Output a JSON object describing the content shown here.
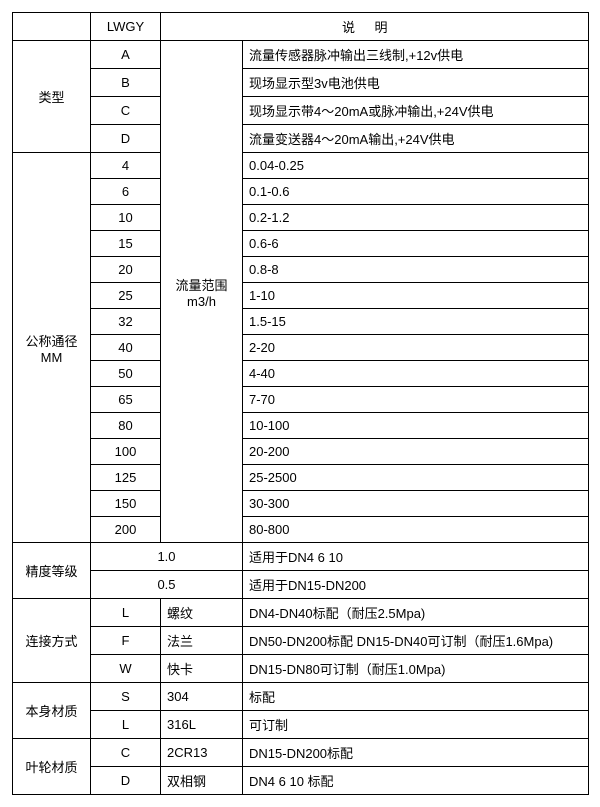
{
  "header": {
    "lwgy": "LWGY",
    "shuoming": "说明"
  },
  "type": {
    "label": "类型",
    "rows": [
      {
        "code": "A",
        "desc": "流量传感器脉冲输出三线制,+12v供电"
      },
      {
        "code": "B",
        "desc": "现场显示型3v电池供电"
      },
      {
        "code": "C",
        "desc": "现场显示带4～20mA或脉冲输出,+24V供电"
      },
      {
        "code": "D",
        "desc": "流量变送器4～20mA输出,+24V供电"
      }
    ]
  },
  "diameter": {
    "label_line1": "公称通径",
    "label_line2": "MM",
    "range_label_line1": "流量范围",
    "range_label_line2": "m3/h",
    "rows": [
      {
        "dn": "4",
        "range": "0.04-0.25"
      },
      {
        "dn": "6",
        "range": "0.1-0.6"
      },
      {
        "dn": "10",
        "range": "0.2-1.2"
      },
      {
        "dn": "15",
        "range": "0.6-6"
      },
      {
        "dn": "20",
        "range": "0.8-8"
      },
      {
        "dn": "25",
        "range": "1-10"
      },
      {
        "dn": "32",
        "range": "1.5-15"
      },
      {
        "dn": "40",
        "range": "2-20"
      },
      {
        "dn": "50",
        "range": "4-40"
      },
      {
        "dn": "65",
        "range": "7-70"
      },
      {
        "dn": "80",
        "range": "10-100"
      },
      {
        "dn": "100",
        "range": "20-200"
      },
      {
        "dn": "125",
        "range": "25-2500"
      },
      {
        "dn": "150",
        "range": "30-300"
      },
      {
        "dn": "200",
        "range": "80-800"
      }
    ]
  },
  "accuracy": {
    "label": "精度等级",
    "rows": [
      {
        "grade": "1.0",
        "desc": "适用于DN4  6  10"
      },
      {
        "grade": "0.5",
        "desc": "适用于DN15-DN200"
      }
    ]
  },
  "connection": {
    "label": "连接方式",
    "rows": [
      {
        "code": "L",
        "name": "螺纹",
        "desc": "DN4-DN40标配（耐压2.5Mpa)"
      },
      {
        "code": "F",
        "name": "法兰",
        "desc": "DN50-DN200标配 DN15-DN40可订制（耐压1.6Mpa)"
      },
      {
        "code": "W",
        "name": "快卡",
        "desc": "DN15-DN80可订制（耐压1.0Mpa)"
      }
    ]
  },
  "body_material": {
    "label": "本身材质",
    "rows": [
      {
        "code": "S",
        "name": "304",
        "desc": "标配"
      },
      {
        "code": "L",
        "name": "316L",
        "desc": "可订制"
      }
    ]
  },
  "impeller_material": {
    "label": "叶轮材质",
    "rows": [
      {
        "code": "C",
        "name": "2CR13",
        "desc": "DN15-DN200标配"
      },
      {
        "code": "D",
        "name": "双相钢",
        "desc": "DN4 6 10 标配"
      }
    ]
  }
}
